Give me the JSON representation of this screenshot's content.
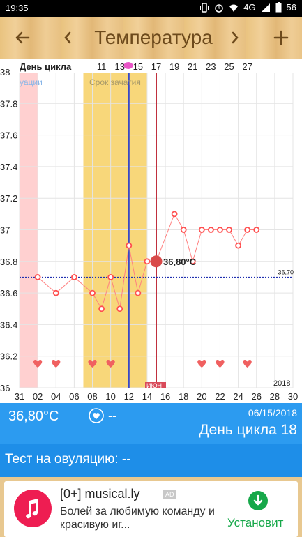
{
  "status_bar": {
    "time": "19:35",
    "network": "4G",
    "battery": "56",
    "icons": [
      "vibrate-icon",
      "alarm-icon",
      "wifi-icon",
      "signal-icon",
      "battery-icon"
    ]
  },
  "toolbar": {
    "title": "Температура",
    "back_icon": "arrow-left-icon",
    "prev_icon": "chevron-left-icon",
    "next_icon": "chevron-right-icon",
    "add_icon": "plus-icon"
  },
  "chart_header": {
    "cycle_day_label": "День цикла",
    "cycle_day_ticks": [
      "11",
      "13",
      "15",
      "17",
      "19",
      "21",
      "23",
      "25",
      "27"
    ],
    "ovulation_band_label": "уации",
    "conception_band_label": "Срок зачатия",
    "year_label": "2018",
    "month_label": "ИЮН"
  },
  "chart_data": {
    "type": "line",
    "y_ticks": [
      "38",
      "37.8",
      "37.6",
      "37.4",
      "37.2",
      "37",
      "36.8",
      "36.6",
      "36.4",
      "36.2",
      "36"
    ],
    "ylim": [
      36,
      38
    ],
    "x_ticks": [
      "31",
      "02",
      "04",
      "06",
      "08",
      "10",
      "12",
      "14",
      "16",
      "18",
      "20",
      "22",
      "24",
      "26",
      "28",
      "30"
    ],
    "xlim": [
      0,
      30
    ],
    "series": [
      {
        "points": [
          {
            "x": 2,
            "y": 36.7
          },
          {
            "x": 4,
            "y": 36.6
          },
          {
            "x": 6,
            "y": 36.7
          },
          {
            "x": 8,
            "y": 36.6
          },
          {
            "x": 9,
            "y": 36.5
          },
          {
            "x": 10,
            "y": 36.7
          },
          {
            "x": 11,
            "y": 36.5
          },
          {
            "x": 12,
            "y": 36.9
          },
          {
            "x": 13,
            "y": 36.6
          },
          {
            "x": 14,
            "y": 36.8
          },
          {
            "x": 15,
            "y": 36.8
          },
          {
            "x": 17,
            "y": 37.1
          },
          {
            "x": 18,
            "y": 37.0
          },
          {
            "x": 19,
            "y": 36.8
          },
          {
            "x": 20,
            "y": 37.0
          },
          {
            "x": 21,
            "y": 37.0
          },
          {
            "x": 22,
            "y": 37.0
          },
          {
            "x": 23,
            "y": 37.0
          },
          {
            "x": 24,
            "y": 36.9
          },
          {
            "x": 25,
            "y": 37.0
          },
          {
            "x": 26,
            "y": 37.0
          }
        ]
      }
    ],
    "selected_point": {
      "x": 15,
      "y": 36.8,
      "label": "36,80°C"
    },
    "reference_line": {
      "y": 36.7,
      "label": "36,70"
    },
    "bands": [
      {
        "name": "menstruation",
        "x_from": 0,
        "x_to": 2,
        "color": "#ffd0d0"
      },
      {
        "name": "conception",
        "x_from": 7,
        "x_to": 14,
        "color": "#f8d77a"
      }
    ],
    "vertical_lines": [
      {
        "name": "ovulation",
        "x": 12,
        "color": "#3848c8"
      },
      {
        "name": "today",
        "x": 15,
        "color": "#c0303e"
      }
    ],
    "hearts_x": [
      2,
      4,
      8,
      10,
      20,
      22,
      25
    ],
    "colors": {
      "line": "#ff8080",
      "point": "#ff4f4f",
      "reference": "#2030b0",
      "grid": "#e4e4e4",
      "selected": "#d94a4a"
    }
  },
  "info_panel": {
    "temperature": "36,80°C",
    "intercourse_value": "--",
    "date": "06/15/2018",
    "cycle_day_text": "День цикла 18"
  },
  "ovulation_test": {
    "text": "Тест на овуляцию: --"
  },
  "ad": {
    "title": "[0+] musical.ly",
    "badge": "AD",
    "description": "Болей за любимую команду и красивую иг...",
    "install_label": "Установит",
    "install_icon": "download-icon",
    "logo": "musically-logo"
  }
}
